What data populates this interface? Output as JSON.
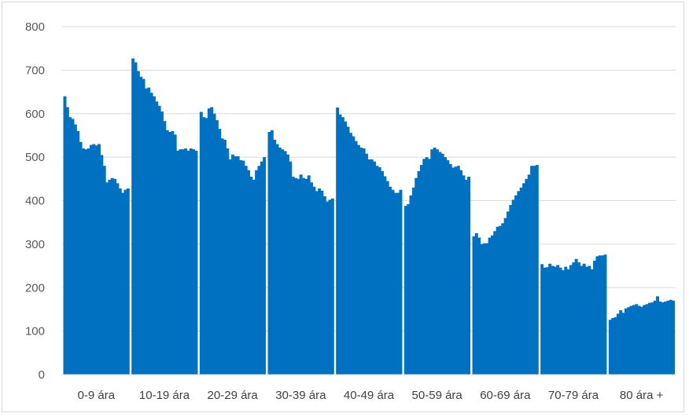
{
  "chart_data": {
    "type": "bar",
    "title": "",
    "xlabel": "",
    "ylabel": "",
    "ylim": [
      0,
      800
    ],
    "yticks": [
      0,
      100,
      200,
      300,
      400,
      500,
      600,
      700,
      800
    ],
    "grid": true,
    "legend": "none",
    "bar_color": "#0070c0",
    "grid_color": "#d9d9d9",
    "groups": [
      {
        "label": "0-9 ára",
        "values": [
          640,
          615,
          592,
          588,
          575,
          560,
          535,
          520,
          518,
          520,
          528,
          530,
          527,
          530,
          505,
          480,
          442,
          448,
          452,
          450,
          440,
          428,
          418,
          425,
          428
        ]
      },
      {
        "label": "10-19 ára",
        "values": [
          727,
          718,
          698,
          685,
          680,
          658,
          660,
          648,
          640,
          628,
          618,
          605,
          583,
          562,
          558,
          560,
          552,
          515,
          518,
          518,
          520,
          515,
          520,
          518,
          515
        ]
      },
      {
        "label": "20-29 ára",
        "values": [
          604,
          592,
          590,
          612,
          615,
          600,
          585,
          565,
          543,
          540,
          520,
          495,
          506,
          502,
          502,
          493,
          492,
          480,
          470,
          455,
          448,
          470,
          480,
          490,
          500
        ]
      },
      {
        "label": "30-39 ára",
        "values": [
          558,
          562,
          540,
          530,
          522,
          518,
          514,
          506,
          490,
          455,
          452,
          450,
          460,
          452,
          450,
          458,
          442,
          432,
          422,
          428,
          423,
          410,
          398,
          402,
          405
        ]
      },
      {
        "label": "40-49 ára",
        "values": [
          614,
          598,
          592,
          582,
          570,
          556,
          548,
          537,
          528,
          522,
          520,
          508,
          495,
          495,
          490,
          480,
          477,
          468,
          456,
          445,
          432,
          425,
          418,
          418,
          425
        ]
      },
      {
        "label": "50-59 ára",
        "values": [
          388,
          392,
          412,
          430,
          452,
          468,
          482,
          496,
          500,
          496,
          518,
          522,
          518,
          512,
          508,
          500,
          493,
          484,
          476,
          478,
          480,
          470,
          458,
          448,
          455
        ]
      },
      {
        "label": "60-69 ára",
        "values": [
          318,
          325,
          315,
          300,
          302,
          302,
          315,
          320,
          330,
          340,
          342,
          348,
          360,
          375,
          390,
          402,
          412,
          422,
          430,
          440,
          450,
          460,
          480,
          480,
          482
        ]
      },
      {
        "label": "70-79 ára",
        "values": [
          254,
          246,
          247,
          255,
          250,
          248,
          252,
          246,
          240,
          248,
          242,
          252,
          258,
          266,
          258,
          250,
          255,
          248,
          250,
          242,
          262,
          272,
          274,
          274,
          276
        ]
      },
      {
        "label": "80 ára +",
        "values": [
          126,
          130,
          132,
          140,
          148,
          142,
          152,
          155,
          158,
          160,
          162,
          158,
          156,
          160,
          162,
          165,
          166,
          170,
          180,
          168,
          166,
          168,
          170,
          172,
          170
        ]
      }
    ]
  }
}
